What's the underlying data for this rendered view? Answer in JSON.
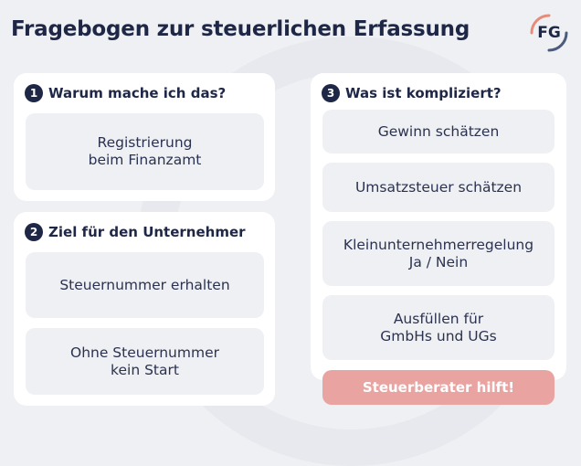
{
  "title": "Fragebogen zur steuerlichen Erfassung",
  "logo": {
    "text": "FG",
    "icon": "fg-logo-icon",
    "ring_colors": [
      "#e58d7a",
      "#4c5a7e"
    ]
  },
  "colors": {
    "navy": "#1f2747",
    "coral": "#e9a3a1",
    "panel": "#ffffff",
    "background": "#eff0f3"
  },
  "sections": [
    {
      "number": "1",
      "heading": "Warum mache ich das?",
      "items": [
        "Registrierung\nbeim Finanzamt"
      ]
    },
    {
      "number": "2",
      "heading": "Ziel für den Unternehmer",
      "items": [
        "Steuernummer erhalten",
        "Ohne Steuernummer\nkein Start"
      ]
    },
    {
      "number": "3",
      "heading": "Was ist kompliziert?",
      "items": [
        "Gewinn schätzen",
        "Umsatzsteuer schätzen",
        "Kleinunternehmerregelung\nJa / Nein",
        "Ausfüllen für\nGmbHs und UGs"
      ]
    }
  ],
  "cta": {
    "label": "Steuerberater hilft!"
  }
}
